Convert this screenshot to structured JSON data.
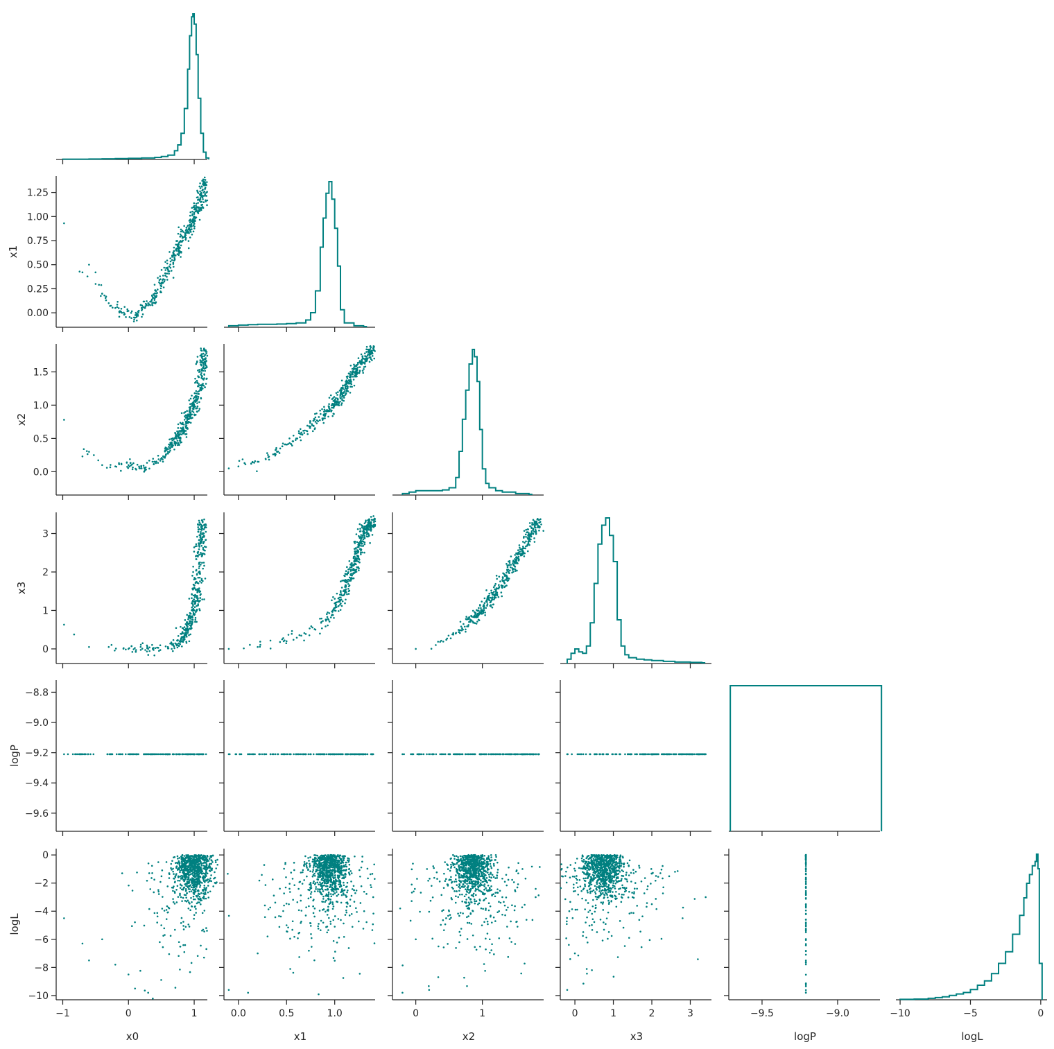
{
  "chart_data": {
    "type": "scatter",
    "title": "",
    "plot_kind": "corner-pairplot",
    "colors": {
      "marks": "#008080",
      "axes": "#262626",
      "background": "#ffffff"
    },
    "grid": false,
    "legend": "none",
    "variables": [
      {
        "name": "x0",
        "label": "x0",
        "range": [
          -1.1,
          1.2
        ],
        "ticks": [
          -1,
          0,
          1
        ],
        "tick_labels": [
          "−1",
          "0",
          "1"
        ]
      },
      {
        "name": "x1",
        "label": "x1",
        "range": [
          -0.15,
          1.42
        ],
        "ticks": [
          0.0,
          0.25,
          0.5,
          0.75,
          1.0,
          1.25
        ],
        "tick_labels": [
          "0.00",
          "0.25",
          "0.50",
          "0.75",
          "1.00",
          "1.25"
        ],
        "x_ticks": [
          0.0,
          0.5,
          1.0
        ],
        "x_tick_labels": [
          "0.0",
          "0.5",
          "1.0"
        ]
      },
      {
        "name": "x2",
        "label": "x2",
        "range": [
          -0.35,
          1.92
        ],
        "ticks": [
          0.0,
          0.5,
          1.0,
          1.5
        ],
        "tick_labels": [
          "0.0",
          "0.5",
          "1.0",
          "1.5"
        ],
        "x_ticks": [
          0,
          1
        ],
        "x_tick_labels": [
          "0",
          "1"
        ]
      },
      {
        "name": "x3",
        "label": "x3",
        "range": [
          -0.38,
          3.55
        ],
        "ticks": [
          0,
          1,
          2,
          3
        ],
        "tick_labels": [
          "0",
          "1",
          "2",
          "3"
        ]
      },
      {
        "name": "logP",
        "label": "logP",
        "range": [
          -9.72,
          -8.72
        ],
        "ticks": [
          -8.8,
          -9.0,
          -9.2,
          -9.4,
          -9.6
        ],
        "tick_labels": [
          "−8.8",
          "−9.0",
          "−9.2",
          "−9.4",
          "−9.6"
        ],
        "x_ticks": [
          -9.5,
          -9.0
        ],
        "x_tick_labels": [
          "−9.5",
          "−9.0"
        ]
      },
      {
        "name": "logL",
        "label": "logL",
        "range": [
          -10.3,
          0.45
        ],
        "ticks": [
          0,
          -2,
          -4,
          -6,
          -8,
          -10
        ],
        "tick_labels": [
          "0",
          "−2",
          "−4",
          "−6",
          "−8",
          "−10"
        ],
        "x_ticks": [
          -10,
          -5,
          0
        ],
        "x_tick_labels": [
          "−10",
          "−5",
          "0"
        ]
      }
    ],
    "logP_constant": -9.21,
    "diagonal_histograms": {
      "x0": {
        "type": "step",
        "bins": [
          [
            -1.0,
            0.002
          ],
          [
            -0.8,
            0.002
          ],
          [
            -0.6,
            0.003
          ],
          [
            -0.4,
            0.004
          ],
          [
            -0.2,
            0.006
          ],
          [
            0.0,
            0.008
          ],
          [
            0.2,
            0.01
          ],
          [
            0.4,
            0.014
          ],
          [
            0.5,
            0.02
          ],
          [
            0.6,
            0.03
          ],
          [
            0.7,
            0.06
          ],
          [
            0.75,
            0.1
          ],
          [
            0.8,
            0.18
          ],
          [
            0.85,
            0.35
          ],
          [
            0.9,
            0.62
          ],
          [
            0.93,
            0.85
          ],
          [
            0.96,
            0.98
          ],
          [
            0.98,
            1.0
          ],
          [
            1.0,
            0.93
          ],
          [
            1.03,
            0.72
          ],
          [
            1.06,
            0.42
          ],
          [
            1.1,
            0.18
          ],
          [
            1.14,
            0.05
          ],
          [
            1.18,
            0.01
          ]
        ]
      },
      "x1": {
        "type": "step",
        "bins": [
          [
            -0.1,
            0.01
          ],
          [
            0.0,
            0.015
          ],
          [
            0.1,
            0.018
          ],
          [
            0.2,
            0.02
          ],
          [
            0.3,
            0.02
          ],
          [
            0.4,
            0.022
          ],
          [
            0.5,
            0.025
          ],
          [
            0.6,
            0.03
          ],
          [
            0.7,
            0.05
          ],
          [
            0.75,
            0.1
          ],
          [
            0.8,
            0.25
          ],
          [
            0.85,
            0.55
          ],
          [
            0.88,
            0.75
          ],
          [
            0.91,
            0.92
          ],
          [
            0.94,
            1.0
          ],
          [
            0.97,
            0.88
          ],
          [
            1.0,
            0.68
          ],
          [
            1.03,
            0.42
          ],
          [
            1.06,
            0.12
          ],
          [
            1.1,
            0.03
          ],
          [
            1.2,
            0.01
          ],
          [
            1.3,
            0.005
          ]
        ]
      },
      "x2": {
        "type": "step",
        "bins": [
          [
            -0.2,
            0.01
          ],
          [
            -0.1,
            0.02
          ],
          [
            0.0,
            0.03
          ],
          [
            0.1,
            0.03
          ],
          [
            0.2,
            0.03
          ],
          [
            0.3,
            0.03
          ],
          [
            0.4,
            0.035
          ],
          [
            0.5,
            0.05
          ],
          [
            0.6,
            0.12
          ],
          [
            0.65,
            0.3
          ],
          [
            0.7,
            0.52
          ],
          [
            0.75,
            0.72
          ],
          [
            0.8,
            0.9
          ],
          [
            0.85,
            1.0
          ],
          [
            0.88,
            0.95
          ],
          [
            0.92,
            0.78
          ],
          [
            0.96,
            0.45
          ],
          [
            1.0,
            0.18
          ],
          [
            1.05,
            0.08
          ],
          [
            1.1,
            0.05
          ],
          [
            1.2,
            0.03
          ],
          [
            1.3,
            0.02
          ],
          [
            1.5,
            0.01
          ],
          [
            1.7,
            0.005
          ]
        ]
      },
      "x3": {
        "type": "step",
        "bins": [
          [
            -0.2,
            0.03
          ],
          [
            -0.1,
            0.07
          ],
          [
            0.0,
            0.1
          ],
          [
            0.1,
            0.08
          ],
          [
            0.2,
            0.07
          ],
          [
            0.3,
            0.12
          ],
          [
            0.4,
            0.28
          ],
          [
            0.5,
            0.55
          ],
          [
            0.6,
            0.82
          ],
          [
            0.7,
            0.95
          ],
          [
            0.8,
            1.0
          ],
          [
            0.9,
            0.88
          ],
          [
            1.0,
            0.7
          ],
          [
            1.1,
            0.3
          ],
          [
            1.2,
            0.12
          ],
          [
            1.3,
            0.06
          ],
          [
            1.4,
            0.04
          ],
          [
            1.6,
            0.03
          ],
          [
            1.8,
            0.025
          ],
          [
            2.0,
            0.02
          ],
          [
            2.3,
            0.015
          ],
          [
            2.6,
            0.01
          ],
          [
            3.0,
            0.008
          ],
          [
            3.3,
            0.005
          ]
        ]
      },
      "logP": {
        "type": "step",
        "bins": [
          [
            -9.7,
            1.0
          ],
          [
            -9.21,
            1.0
          ]
        ],
        "edges": [
          -9.71,
          -8.71
        ]
      },
      "logL": {
        "type": "step",
        "bins": [
          [
            -10.0,
            0.003
          ],
          [
            -9.0,
            0.005
          ],
          [
            -8.0,
            0.01
          ],
          [
            -7.5,
            0.015
          ],
          [
            -7.0,
            0.02
          ],
          [
            -6.5,
            0.03
          ],
          [
            -6.0,
            0.04
          ],
          [
            -5.5,
            0.05
          ],
          [
            -5.0,
            0.07
          ],
          [
            -4.5,
            0.1
          ],
          [
            -4.0,
            0.13
          ],
          [
            -3.5,
            0.18
          ],
          [
            -3.0,
            0.25
          ],
          [
            -2.5,
            0.33
          ],
          [
            -2.0,
            0.45
          ],
          [
            -1.5,
            0.58
          ],
          [
            -1.2,
            0.7
          ],
          [
            -1.0,
            0.8
          ],
          [
            -0.8,
            0.86
          ],
          [
            -0.6,
            0.92
          ],
          [
            -0.4,
            0.95
          ],
          [
            -0.3,
            1.0
          ],
          [
            -0.2,
            0.9
          ],
          [
            -0.1,
            0.25
          ]
        ]
      }
    },
    "scatter_panels": {
      "x1_vs_x0": {
        "shape": "parabola",
        "points": [
          [
            -0.98,
            0.93
          ],
          [
            -0.7,
            0.42
          ],
          [
            -0.6,
            0.5
          ],
          [
            -0.5,
            0.3
          ],
          [
            -0.4,
            0.2
          ],
          [
            -0.3,
            0.1
          ],
          [
            -0.2,
            0.05
          ],
          [
            -0.1,
            0.0
          ],
          [
            0.0,
            0.02
          ],
          [
            0.1,
            -0.05
          ],
          [
            0.2,
            0.05
          ],
          [
            0.3,
            0.1
          ],
          [
            0.4,
            0.15
          ],
          [
            0.5,
            0.3
          ],
          [
            0.6,
            0.45
          ],
          [
            0.7,
            0.6
          ],
          [
            0.8,
            0.7
          ],
          [
            0.9,
            0.85
          ],
          [
            1.0,
            1.0
          ],
          [
            1.1,
            1.15
          ],
          [
            1.17,
            1.38
          ]
        ]
      },
      "x2_vs_x0": {
        "shape": "parabola",
        "points": [
          [
            -0.98,
            0.78
          ],
          [
            -0.7,
            0.23
          ],
          [
            -0.6,
            0.3
          ],
          [
            -0.4,
            0.1
          ],
          [
            -0.2,
            0.08
          ],
          [
            0.0,
            0.1
          ],
          [
            0.2,
            0.05
          ],
          [
            0.4,
            0.15
          ],
          [
            0.6,
            0.3
          ],
          [
            0.7,
            0.45
          ],
          [
            0.8,
            0.6
          ],
          [
            0.9,
            0.8
          ],
          [
            1.0,
            1.0
          ],
          [
            1.1,
            1.3
          ],
          [
            1.15,
            1.85
          ]
        ]
      },
      "x3_vs_x0": {
        "shape": "parabola",
        "points": [
          [
            -0.98,
            0.63
          ],
          [
            -0.6,
            0.05
          ],
          [
            -0.3,
            0.05
          ],
          [
            0.0,
            0.0
          ],
          [
            0.3,
            0.0
          ],
          [
            0.6,
            0.05
          ],
          [
            0.8,
            0.2
          ],
          [
            0.9,
            0.5
          ],
          [
            1.0,
            1.0
          ],
          [
            1.05,
            1.5
          ],
          [
            1.1,
            2.5
          ],
          [
            1.12,
            3.35
          ]
        ]
      },
      "x2_vs_x1": {
        "shape": "curve",
        "points": [
          [
            -0.1,
            0.05
          ],
          [
            0.0,
            0.08
          ],
          [
            0.2,
            0.15
          ],
          [
            0.4,
            0.3
          ],
          [
            0.6,
            0.5
          ],
          [
            0.8,
            0.75
          ],
          [
            1.0,
            1.0
          ],
          [
            1.1,
            1.2
          ],
          [
            1.2,
            1.5
          ],
          [
            1.4,
            1.85
          ]
        ]
      },
      "x3_vs_x1": {
        "shape": "curve",
        "points": [
          [
            -0.1,
            0.0
          ],
          [
            0.2,
            0.05
          ],
          [
            0.5,
            0.2
          ],
          [
            0.8,
            0.5
          ],
          [
            1.0,
            1.0
          ],
          [
            1.1,
            1.5
          ],
          [
            1.2,
            2.2
          ],
          [
            1.3,
            3.0
          ],
          [
            1.4,
            3.35
          ]
        ]
      },
      "x3_vs_x2": {
        "shape": "curve",
        "points": [
          [
            0.0,
            0.0
          ],
          [
            0.3,
            0.1
          ],
          [
            0.6,
            0.4
          ],
          [
            0.8,
            0.7
          ],
          [
            1.0,
            1.0
          ],
          [
            1.2,
            1.5
          ],
          [
            1.5,
            2.3
          ],
          [
            1.85,
            3.35
          ]
        ]
      },
      "logL_vs_x0": {
        "shape": "cluster",
        "center": [
          1.0,
          -1.5
        ],
        "points": [
          [
            -0.98,
            -4.5
          ],
          [
            -0.7,
            -6.3
          ],
          [
            -0.6,
            -7.5
          ],
          [
            -0.4,
            -6.0
          ],
          [
            -0.2,
            -7.8
          ],
          [
            0.0,
            -8.5
          ],
          [
            0.1,
            -9.5
          ],
          [
            0.3,
            -9.8
          ],
          [
            0.5,
            -5.0
          ],
          [
            0.8,
            -3.0
          ],
          [
            0.9,
            -2.0
          ],
          [
            1.0,
            -0.5
          ],
          [
            1.1,
            -1.0
          ],
          [
            1.15,
            -7.3
          ]
        ]
      },
      "logL_vs_x1": {
        "shape": "cluster",
        "center": [
          0.95,
          -1.5
        ],
        "points": [
          [
            -0.1,
            -9.6
          ],
          [
            0.1,
            -9.8
          ],
          [
            0.2,
            -7.0
          ],
          [
            0.5,
            -5.0
          ],
          [
            0.8,
            -2.0
          ],
          [
            1.0,
            -0.5
          ],
          [
            1.2,
            -2.5
          ],
          [
            1.4,
            -3.0
          ]
        ]
      },
      "logL_vs_x2": {
        "shape": "cluster",
        "center": [
          0.85,
          -1.5
        ],
        "points": [
          [
            -0.2,
            -9.8
          ],
          [
            0.0,
            -6.0
          ],
          [
            0.2,
            -9.6
          ],
          [
            0.5,
            -4.0
          ],
          [
            0.8,
            -0.2
          ],
          [
            1.0,
            -1.0
          ],
          [
            1.3,
            -3.0
          ],
          [
            1.8,
            -3.0
          ]
        ]
      },
      "logL_vs_x3": {
        "shape": "cluster",
        "center": [
          0.75,
          -1.5
        ],
        "points": [
          [
            -0.2,
            -9.6
          ],
          [
            0.0,
            -7.0
          ],
          [
            0.5,
            -0.5
          ],
          [
            1.0,
            -2.0
          ],
          [
            1.5,
            -3.0
          ],
          [
            2.0,
            -3.5
          ],
          [
            2.3,
            -2.3
          ],
          [
            2.8,
            -4.5
          ],
          [
            3.4,
            -3.0
          ]
        ]
      },
      "logP_vs_x0": {
        "shape": "horizontal-line",
        "x_extent": [
          -0.98,
          1.18
        ]
      },
      "logP_vs_x1": {
        "shape": "horizontal-line",
        "x_extent": [
          -0.1,
          1.4
        ]
      },
      "logP_vs_x2": {
        "shape": "horizontal-line",
        "x_extent": [
          -0.2,
          1.85
        ]
      },
      "logP_vs_x3": {
        "shape": "horizontal-line",
        "x_extent": [
          -0.2,
          3.4
        ]
      },
      "logL_vs_logP": {
        "shape": "vertical-line",
        "x_value": -9.21,
        "y_extent": [
          -9.8,
          0.0
        ]
      }
    }
  }
}
